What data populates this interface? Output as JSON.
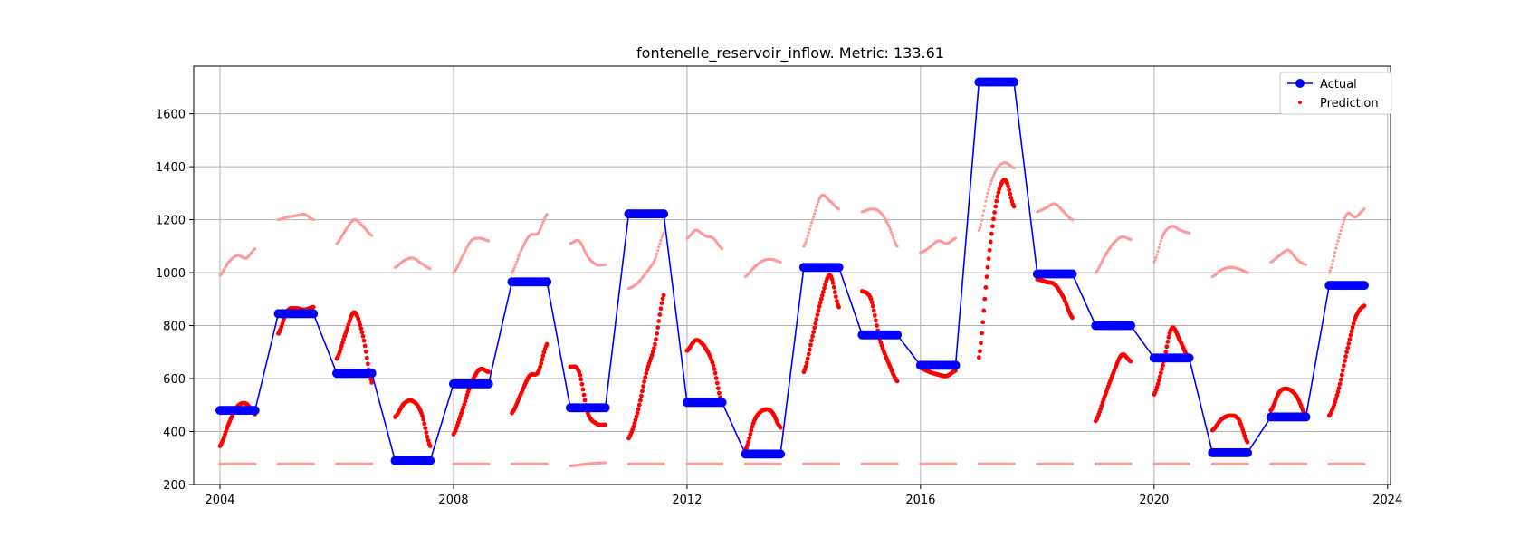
{
  "chart_data": {
    "type": "scatter",
    "title": "fontenelle_reservoir_inflow. Metric: 133.61",
    "xlabel": "",
    "ylabel": "",
    "xlim": [
      2003.55,
      2024.05
    ],
    "ylim": [
      200,
      1780
    ],
    "xticks": [
      2004,
      2008,
      2012,
      2016,
      2020,
      2024
    ],
    "yticks": [
      200,
      400,
      600,
      800,
      1000,
      1200,
      1400,
      1600
    ],
    "grid": true,
    "legend_position": "top-right",
    "colors": {
      "actual": "#0000ff",
      "prediction": "#ff0000",
      "prediction_faded": "#ff9a9a",
      "grid": "#b0b0b0"
    },
    "series": [
      {
        "name": "Actual",
        "style": "line-with-markers",
        "x": [
          2004.0,
          2004.6,
          2005.0,
          2005.6,
          2006.0,
          2006.6,
          2007.0,
          2007.6,
          2008.0,
          2008.6,
          2009.0,
          2009.6,
          2010.0,
          2010.6,
          2011.0,
          2011.6,
          2012.0,
          2012.6,
          2013.0,
          2013.6,
          2014.0,
          2014.6,
          2015.0,
          2015.6,
          2016.0,
          2016.6,
          2017.0,
          2017.6,
          2018.0,
          2018.6,
          2019.0,
          2019.6,
          2020.0,
          2020.6,
          2021.0,
          2021.6,
          2022.0,
          2022.6,
          2023.0,
          2023.6
        ],
        "y": [
          480,
          480,
          845,
          845,
          620,
          620,
          290,
          290,
          580,
          580,
          965,
          965,
          490,
          490,
          1222,
          1222,
          510,
          510,
          315,
          315,
          1020,
          1020,
          765,
          765,
          650,
          650,
          1720,
          1720,
          995,
          995,
          800,
          800,
          678,
          678,
          320,
          320,
          455,
          455,
          952,
          952
        ]
      },
      {
        "name": "Prediction",
        "style": "scatter",
        "segments": [
          {
            "x": [
              2004.0,
              2004.15,
              2004.3,
              2004.45,
              2004.6
            ],
            "y": [
              345,
              430,
              495,
              505,
              465
            ]
          },
          {
            "x": [
              2005.0,
              2005.15,
              2005.3,
              2005.45,
              2005.6
            ],
            "y": [
              770,
              855,
              865,
              860,
              870
            ]
          },
          {
            "x": [
              2006.0,
              2006.15,
              2006.3,
              2006.45,
              2006.6
            ],
            "y": [
              675,
              770,
              850,
              760,
              585
            ]
          },
          {
            "x": [
              2007.0,
              2007.15,
              2007.3,
              2007.45,
              2007.6
            ],
            "y": [
              455,
              505,
              515,
              470,
              345
            ]
          },
          {
            "x": [
              2008.0,
              2008.15,
              2008.3,
              2008.45,
              2008.6
            ],
            "y": [
              390,
              480,
              580,
              635,
              625
            ]
          },
          {
            "x": [
              2009.0,
              2009.15,
              2009.3,
              2009.45,
              2009.6
            ],
            "y": [
              470,
              540,
              610,
              625,
              730
            ]
          },
          {
            "x": [
              2010.0,
              2010.15,
              2010.3,
              2010.45,
              2010.6
            ],
            "y": [
              645,
              625,
              470,
              430,
              425
            ]
          },
          {
            "x": [
              2011.0,
              2011.15,
              2011.3,
              2011.45,
              2011.6
            ],
            "y": [
              375,
              470,
              620,
              730,
              915
            ]
          },
          {
            "x": [
              2012.0,
              2012.15,
              2012.3,
              2012.45,
              2012.6
            ],
            "y": [
              705,
              745,
              720,
              650,
              505
            ]
          },
          {
            "x": [
              2013.0,
              2013.15,
              2013.3,
              2013.45,
              2013.6
            ],
            "y": [
              330,
              440,
              480,
              475,
              415
            ]
          },
          {
            "x": [
              2014.0,
              2014.15,
              2014.3,
              2014.45,
              2014.6
            ],
            "y": [
              625,
              760,
              900,
              990,
              870
            ]
          },
          {
            "x": [
              2015.0,
              2015.15,
              2015.3,
              2015.45,
              2015.6
            ],
            "y": [
              930,
              900,
              750,
              660,
              590
            ]
          },
          {
            "x": [
              2016.0,
              2016.15,
              2016.3,
              2016.45,
              2016.6
            ],
            "y": [
              640,
              625,
              615,
              610,
              630
            ]
          },
          {
            "x": [
              2017.0,
              2017.15,
              2017.3,
              2017.45,
              2017.6
            ],
            "y": [
              680,
              1020,
              1270,
              1350,
              1250
            ]
          },
          {
            "x": [
              2018.0,
              2018.15,
              2018.3,
              2018.45,
              2018.6
            ],
            "y": [
              975,
              965,
              955,
              905,
              830
            ]
          },
          {
            "x": [
              2019.0,
              2019.15,
              2019.3,
              2019.45,
              2019.6
            ],
            "y": [
              440,
              530,
              620,
              690,
              665
            ]
          },
          {
            "x": [
              2020.0,
              2020.15,
              2020.3,
              2020.45,
              2020.6
            ],
            "y": [
              540,
              650,
              790,
              740,
              675
            ]
          },
          {
            "x": [
              2021.0,
              2021.15,
              2021.3,
              2021.45,
              2021.6
            ],
            "y": [
              405,
              445,
              460,
              445,
              360
            ]
          },
          {
            "x": [
              2022.0,
              2022.15,
              2022.3,
              2022.45,
              2022.6
            ],
            "y": [
              480,
              550,
              560,
              530,
              460
            ]
          },
          {
            "x": [
              2023.0,
              2023.15,
              2023.3,
              2023.45,
              2023.6
            ],
            "y": [
              460,
              550,
              700,
              830,
              875
            ]
          }
        ]
      },
      {
        "style": "scatter-faded",
        "segments": [
          {
            "x": [
              2004.0,
              2004.15,
              2004.3,
              2004.45,
              2004.6
            ],
            "y": [
              990,
              1040,
              1065,
              1055,
              1090
            ]
          },
          {
            "x": [
              2005.0,
              2005.15,
              2005.3,
              2005.45,
              2005.6
            ],
            "y": [
              1200,
              1210,
              1215,
              1220,
              1200
            ]
          },
          {
            "x": [
              2006.0,
              2006.15,
              2006.3,
              2006.45,
              2006.6
            ],
            "y": [
              1110,
              1160,
              1200,
              1175,
              1140
            ]
          },
          {
            "x": [
              2007.0,
              2007.15,
              2007.3,
              2007.45,
              2007.6
            ],
            "y": [
              1020,
              1045,
              1055,
              1035,
              1015
            ]
          },
          {
            "x": [
              2008.0,
              2008.15,
              2008.3,
              2008.45,
              2008.6
            ],
            "y": [
              1000,
              1060,
              1120,
              1130,
              1120
            ]
          },
          {
            "x": [
              2009.0,
              2009.15,
              2009.3,
              2009.45,
              2009.6
            ],
            "y": [
              1000,
              1080,
              1140,
              1150,
              1220
            ]
          },
          {
            "x": [
              2010.0,
              2010.15,
              2010.3,
              2010.45,
              2010.6
            ],
            "y": [
              1110,
              1120,
              1060,
              1030,
              1030
            ]
          },
          {
            "x": [
              2011.0,
              2011.15,
              2011.3,
              2011.45,
              2011.6
            ],
            "y": [
              940,
              960,
              1000,
              1050,
              1150
            ]
          },
          {
            "x": [
              2012.0,
              2012.15,
              2012.3,
              2012.45,
              2012.6
            ],
            "y": [
              1130,
              1160,
              1140,
              1130,
              1090
            ]
          },
          {
            "x": [
              2013.0,
              2013.15,
              2013.3,
              2013.45,
              2013.6
            ],
            "y": [
              985,
              1020,
              1045,
              1050,
              1040
            ]
          },
          {
            "x": [
              2014.0,
              2014.15,
              2014.3,
              2014.45,
              2014.6
            ],
            "y": [
              1100,
              1200,
              1290,
              1270,
              1240
            ]
          },
          {
            "x": [
              2015.0,
              2015.15,
              2015.3,
              2015.45,
              2015.6
            ],
            "y": [
              1230,
              1240,
              1230,
              1180,
              1100
            ]
          },
          {
            "x": [
              2016.0,
              2016.15,
              2016.3,
              2016.45,
              2016.6
            ],
            "y": [
              1075,
              1095,
              1120,
              1110,
              1130
            ]
          },
          {
            "x": [
              2017.0,
              2017.15,
              2017.3,
              2017.45,
              2017.6
            ],
            "y": [
              1160,
              1300,
              1390,
              1415,
              1395
            ]
          },
          {
            "x": [
              2018.0,
              2018.15,
              2018.3,
              2018.45,
              2018.6
            ],
            "y": [
              1230,
              1245,
              1260,
              1230,
              1200
            ]
          },
          {
            "x": [
              2019.0,
              2019.15,
              2019.3,
              2019.45,
              2019.6
            ],
            "y": [
              1000,
              1060,
              1110,
              1135,
              1125
            ]
          },
          {
            "x": [
              2020.0,
              2020.15,
              2020.3,
              2020.45,
              2020.6
            ],
            "y": [
              1040,
              1140,
              1175,
              1160,
              1150
            ]
          },
          {
            "x": [
              2021.0,
              2021.15,
              2021.3,
              2021.45,
              2021.6
            ],
            "y": [
              985,
              1010,
              1020,
              1015,
              1000
            ]
          },
          {
            "x": [
              2022.0,
              2022.15,
              2022.3,
              2022.45,
              2022.6
            ],
            "y": [
              1040,
              1065,
              1085,
              1050,
              1030
            ]
          },
          {
            "x": [
              2023.0,
              2023.15,
              2023.3,
              2023.45,
              2023.6
            ],
            "y": [
              1000,
              1120,
              1220,
              1210,
              1240
            ]
          },
          {
            "x": [
              2004.0,
              2004.6
            ],
            "y": [
              278,
              278
            ]
          },
          {
            "x": [
              2005.0,
              2005.6
            ],
            "y": [
              278,
              278
            ]
          },
          {
            "x": [
              2006.0,
              2006.6
            ],
            "y": [
              278,
              278
            ]
          },
          {
            "x": [
              2007.0,
              2007.6
            ],
            "y": [
              278,
              278
            ]
          },
          {
            "x": [
              2008.0,
              2008.6
            ],
            "y": [
              278,
              278
            ]
          },
          {
            "x": [
              2009.0,
              2009.6
            ],
            "y": [
              278,
              278
            ]
          },
          {
            "x": [
              2010.0,
              2010.3,
              2010.6
            ],
            "y": [
              270,
              278,
              282
            ]
          },
          {
            "x": [
              2011.0,
              2011.6
            ],
            "y": [
              278,
              278
            ]
          },
          {
            "x": [
              2012.0,
              2012.6
            ],
            "y": [
              278,
              278
            ]
          },
          {
            "x": [
              2013.0,
              2013.6
            ],
            "y": [
              278,
              278
            ]
          },
          {
            "x": [
              2014.0,
              2014.6
            ],
            "y": [
              278,
              278
            ]
          },
          {
            "x": [
              2015.0,
              2015.6
            ],
            "y": [
              278,
              278
            ]
          },
          {
            "x": [
              2016.0,
              2016.6
            ],
            "y": [
              278,
              278
            ]
          },
          {
            "x": [
              2017.0,
              2017.6
            ],
            "y": [
              278,
              278
            ]
          },
          {
            "x": [
              2018.0,
              2018.6
            ],
            "y": [
              278,
              278
            ]
          },
          {
            "x": [
              2019.0,
              2019.6
            ],
            "y": [
              278,
              278
            ]
          },
          {
            "x": [
              2020.0,
              2020.6
            ],
            "y": [
              278,
              278
            ]
          },
          {
            "x": [
              2021.0,
              2021.6
            ],
            "y": [
              278,
              278
            ]
          },
          {
            "x": [
              2022.0,
              2022.6
            ],
            "y": [
              278,
              278
            ]
          },
          {
            "x": [
              2023.0,
              2023.6
            ],
            "y": [
              278,
              278
            ]
          }
        ]
      }
    ]
  }
}
